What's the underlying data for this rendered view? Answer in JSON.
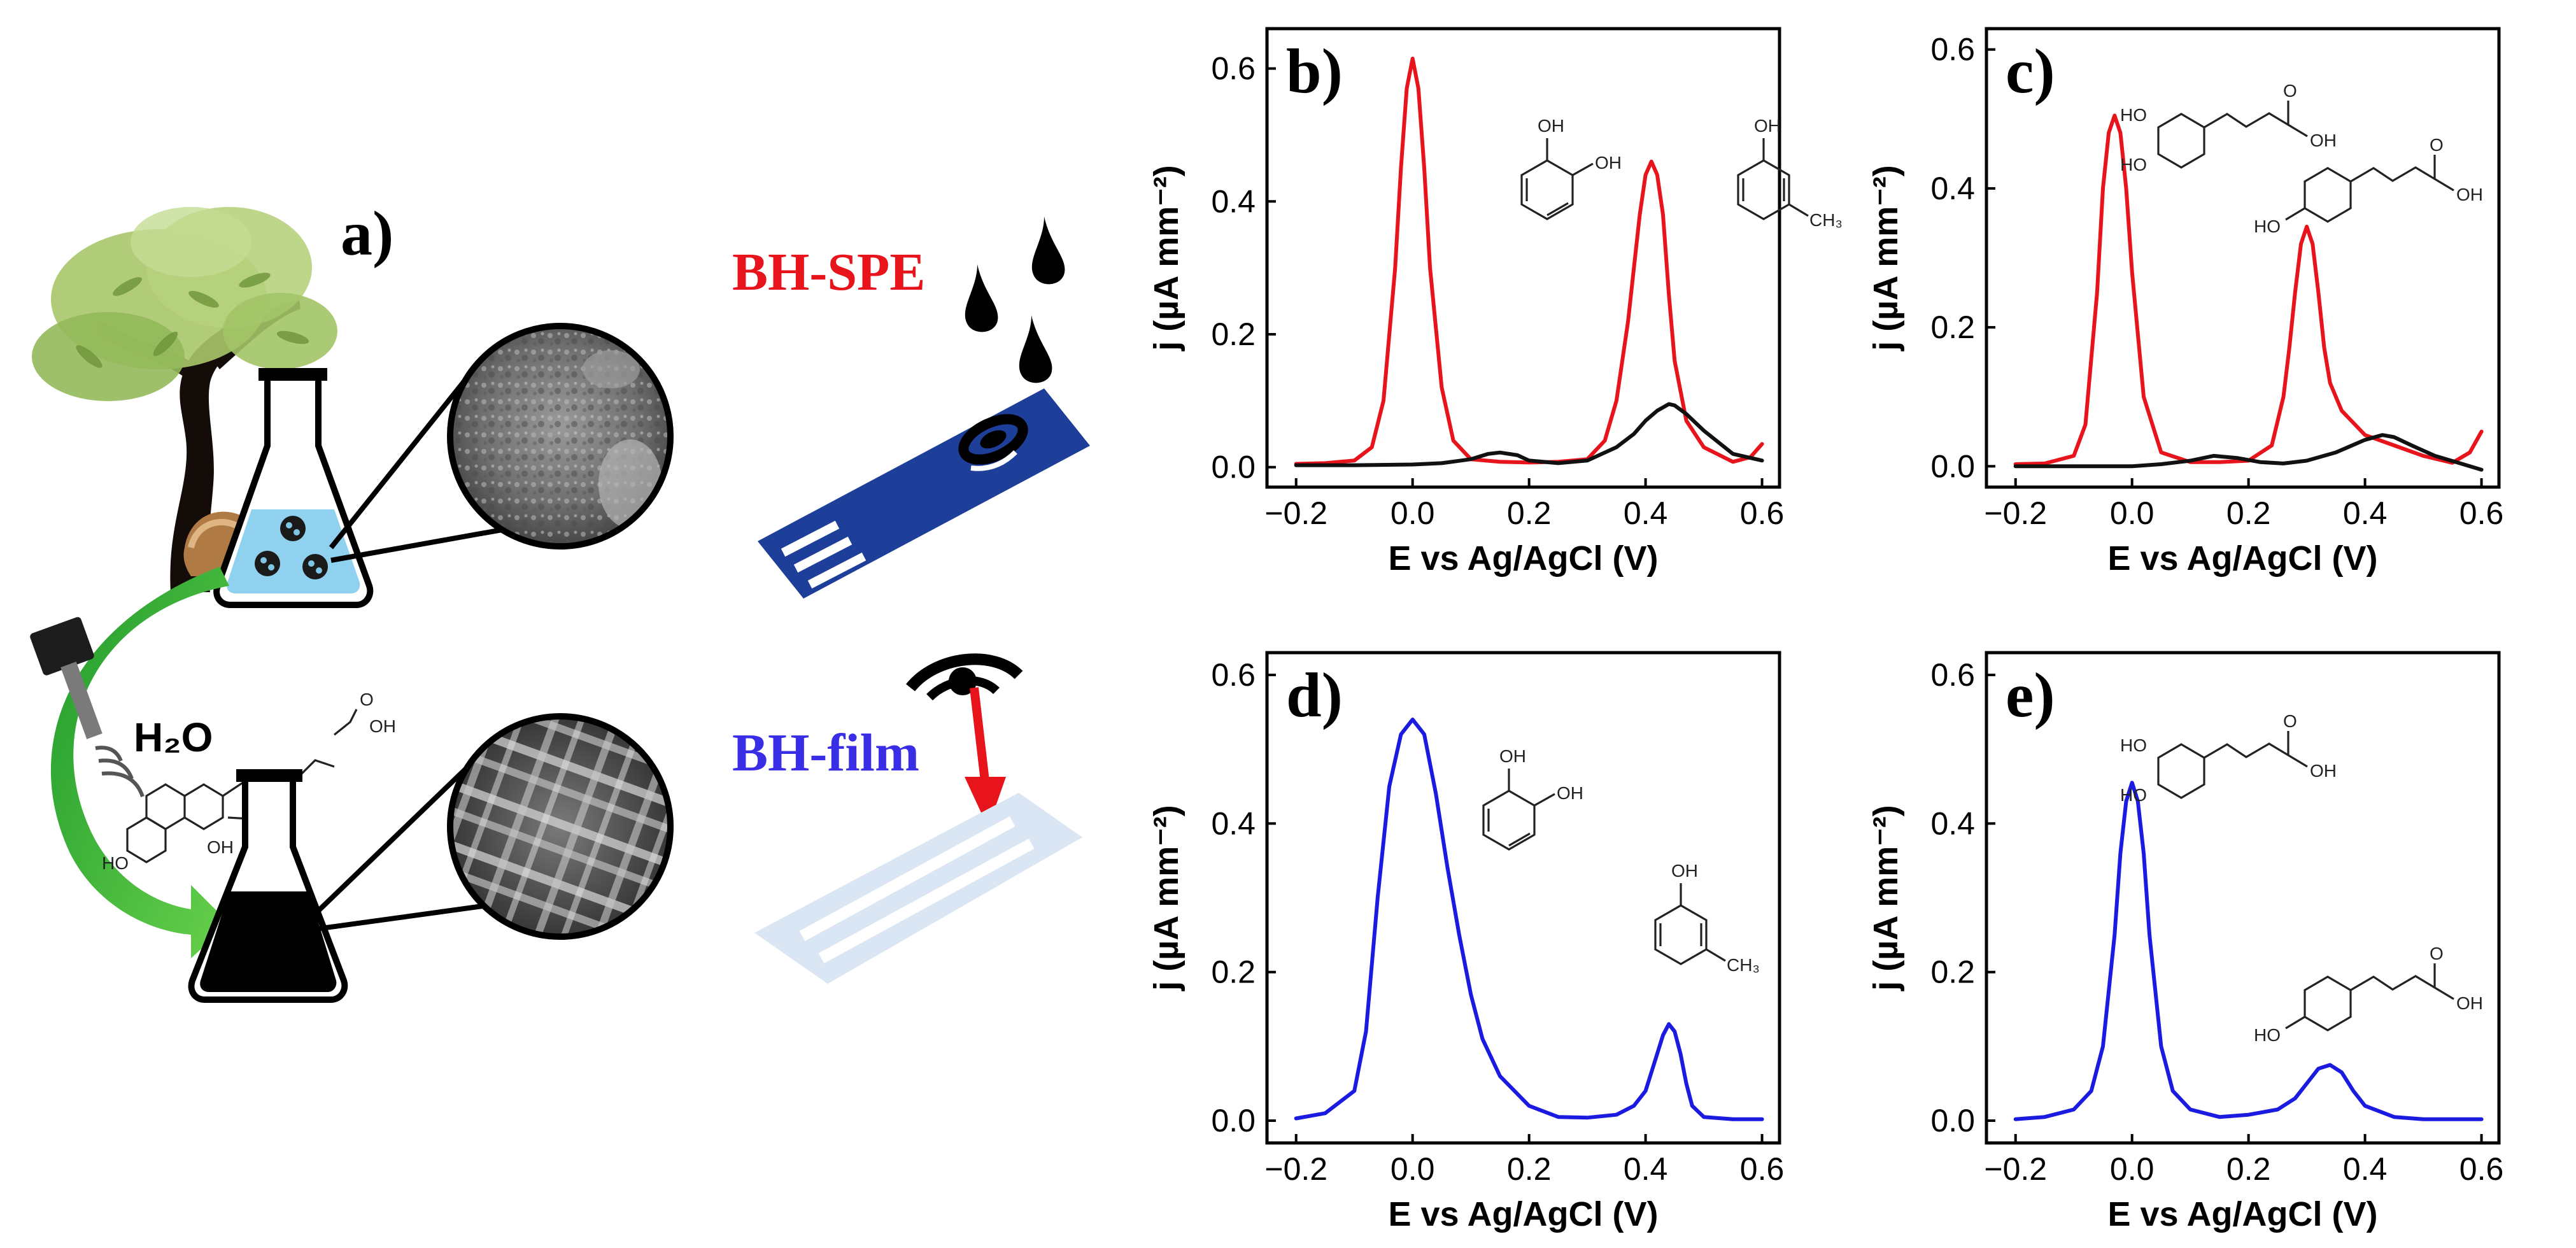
{
  "scheme": {
    "panel_label": "a)",
    "water_label": "H₂O",
    "spe_label": "BH-SPE",
    "film_label": "BH-film",
    "spe_color": "#e8141c",
    "film_color": "#3a2de6"
  },
  "molecules": {
    "oh": "OH",
    "ho": "HO",
    "ch3": "CH₃",
    "o": "O"
  },
  "chart_data": [
    {
      "panel": "b)",
      "type": "line",
      "xlabel": "E vs Ag/AgCl (V)",
      "ylabel": "j (µA mm⁻²)",
      "xlim": [
        -0.25,
        0.63
      ],
      "ylim": [
        -0.03,
        0.66
      ],
      "xticks": [
        "-0.2",
        "0.0",
        "0.2",
        "0.4",
        "0.6"
      ],
      "xtick_values": [
        -0.2,
        0.0,
        0.2,
        0.4,
        0.6
      ],
      "yticks": [
        "0.0",
        "0.2",
        "0.4",
        "0.6"
      ],
      "ytick_values": [
        0.0,
        0.2,
        0.4,
        0.6
      ],
      "series": [
        {
          "name": "BH-SPE",
          "color": "#e8141c",
          "x": [
            -0.2,
            -0.15,
            -0.1,
            -0.07,
            -0.05,
            -0.03,
            -0.02,
            -0.01,
            0.0,
            0.01,
            0.02,
            0.03,
            0.05,
            0.07,
            0.1,
            0.15,
            0.2,
            0.25,
            0.3,
            0.33,
            0.35,
            0.37,
            0.38,
            0.39,
            0.4,
            0.41,
            0.42,
            0.43,
            0.44,
            0.45,
            0.47,
            0.5,
            0.55,
            0.58,
            0.6
          ],
          "y": [
            0.005,
            0.006,
            0.01,
            0.03,
            0.1,
            0.3,
            0.45,
            0.57,
            0.615,
            0.57,
            0.45,
            0.3,
            0.12,
            0.04,
            0.012,
            0.008,
            0.007,
            0.008,
            0.012,
            0.04,
            0.1,
            0.22,
            0.3,
            0.38,
            0.44,
            0.46,
            0.44,
            0.38,
            0.26,
            0.16,
            0.07,
            0.03,
            0.008,
            0.015,
            0.035
          ]
        },
        {
          "name": "BH-film",
          "color": "#111111",
          "x": [
            -0.2,
            -0.1,
            0.0,
            0.05,
            0.1,
            0.13,
            0.15,
            0.18,
            0.2,
            0.25,
            0.3,
            0.35,
            0.38,
            0.4,
            0.42,
            0.44,
            0.45,
            0.47,
            0.5,
            0.55,
            0.6
          ],
          "y": [
            0.003,
            0.003,
            0.004,
            0.006,
            0.012,
            0.02,
            0.022,
            0.018,
            0.01,
            0.006,
            0.01,
            0.03,
            0.05,
            0.07,
            0.085,
            0.095,
            0.093,
            0.08,
            0.055,
            0.02,
            0.01
          ]
        }
      ]
    },
    {
      "panel": "c)",
      "type": "line",
      "xlabel": "E vs Ag/AgCl (V)",
      "ylabel": "j (µA mm⁻²)",
      "xlim": [
        -0.25,
        0.63
      ],
      "ylim": [
        -0.03,
        0.63
      ],
      "xticks": [
        "-0.2",
        "0.0",
        "0.2",
        "0.4",
        "0.6"
      ],
      "xtick_values": [
        -0.2,
        0.0,
        0.2,
        0.4,
        0.6
      ],
      "yticks": [
        "0.0",
        "0.2",
        "0.4",
        "0.6"
      ],
      "ytick_values": [
        0.0,
        0.2,
        0.4,
        0.6
      ],
      "series": [
        {
          "name": "BH-SPE",
          "color": "#e8141c",
          "x": [
            -0.2,
            -0.15,
            -0.1,
            -0.08,
            -0.06,
            -0.05,
            -0.04,
            -0.03,
            -0.02,
            -0.01,
            0.0,
            0.02,
            0.05,
            0.1,
            0.15,
            0.2,
            0.24,
            0.26,
            0.27,
            0.28,
            0.29,
            0.3,
            0.31,
            0.32,
            0.33,
            0.34,
            0.36,
            0.4,
            0.45,
            0.5,
            0.55,
            0.58,
            0.6
          ],
          "y": [
            0.003,
            0.004,
            0.015,
            0.06,
            0.25,
            0.4,
            0.48,
            0.505,
            0.48,
            0.4,
            0.28,
            0.1,
            0.02,
            0.006,
            0.006,
            0.008,
            0.03,
            0.1,
            0.17,
            0.25,
            0.32,
            0.345,
            0.32,
            0.25,
            0.17,
            0.12,
            0.08,
            0.045,
            0.03,
            0.015,
            0.005,
            0.02,
            0.05
          ]
        },
        {
          "name": "BH-film",
          "color": "#111111",
          "x": [
            -0.2,
            -0.1,
            0.0,
            0.05,
            0.1,
            0.14,
            0.18,
            0.22,
            0.26,
            0.3,
            0.35,
            0.4,
            0.43,
            0.45,
            0.48,
            0.52,
            0.56,
            0.6
          ],
          "y": [
            0.0,
            0.0,
            0.0,
            0.003,
            0.008,
            0.015,
            0.012,
            0.006,
            0.004,
            0.008,
            0.02,
            0.038,
            0.045,
            0.042,
            0.03,
            0.015,
            0.005,
            -0.005
          ]
        }
      ]
    },
    {
      "panel": "d)",
      "type": "line",
      "xlabel": "E vs Ag/AgCl (V)",
      "ylabel": "j (µA mm⁻²)",
      "xlim": [
        -0.25,
        0.63
      ],
      "ylim": [
        -0.03,
        0.63
      ],
      "xticks": [
        "-0.2",
        "0.0",
        "0.2",
        "0.4",
        "0.6"
      ],
      "xtick_values": [
        -0.2,
        0.0,
        0.2,
        0.4,
        0.6
      ],
      "yticks": [
        "0.0",
        "0.2",
        "0.4",
        "0.6"
      ],
      "ytick_values": [
        0.0,
        0.2,
        0.4,
        0.6
      ],
      "series": [
        {
          "name": "BH-film",
          "color": "#1a1ae0",
          "x": [
            -0.2,
            -0.15,
            -0.1,
            -0.08,
            -0.06,
            -0.04,
            -0.02,
            0.0,
            0.02,
            0.04,
            0.06,
            0.08,
            0.1,
            0.12,
            0.15,
            0.2,
            0.25,
            0.3,
            0.35,
            0.38,
            0.4,
            0.42,
            0.43,
            0.44,
            0.45,
            0.46,
            0.47,
            0.48,
            0.5,
            0.55,
            0.6
          ],
          "y": [
            0.003,
            0.01,
            0.04,
            0.12,
            0.3,
            0.45,
            0.52,
            0.54,
            0.52,
            0.44,
            0.34,
            0.25,
            0.17,
            0.11,
            0.06,
            0.02,
            0.005,
            0.004,
            0.008,
            0.02,
            0.04,
            0.09,
            0.115,
            0.13,
            0.12,
            0.09,
            0.05,
            0.02,
            0.005,
            0.002,
            0.002
          ]
        }
      ]
    },
    {
      "panel": "e)",
      "type": "line",
      "xlabel": "E vs Ag/AgCl (V)",
      "ylabel": "j (µA mm⁻²)",
      "xlim": [
        -0.25,
        0.63
      ],
      "ylim": [
        -0.03,
        0.63
      ],
      "xticks": [
        "-0.2",
        "0.0",
        "0.2",
        "0.4",
        "0.6"
      ],
      "xtick_values": [
        -0.2,
        0.0,
        0.2,
        0.4,
        0.6
      ],
      "yticks": [
        "0.0",
        "0.2",
        "0.4",
        "0.6"
      ],
      "ytick_values": [
        0.0,
        0.2,
        0.4,
        0.6
      ],
      "series": [
        {
          "name": "BH-film",
          "color": "#1a1ae0",
          "x": [
            -0.2,
            -0.15,
            -0.1,
            -0.07,
            -0.05,
            -0.03,
            -0.02,
            -0.01,
            0.0,
            0.01,
            0.02,
            0.03,
            0.05,
            0.07,
            0.1,
            0.15,
            0.2,
            0.25,
            0.28,
            0.3,
            0.32,
            0.34,
            0.36,
            0.38,
            0.4,
            0.45,
            0.5,
            0.6
          ],
          "y": [
            0.002,
            0.005,
            0.015,
            0.04,
            0.1,
            0.25,
            0.36,
            0.43,
            0.455,
            0.43,
            0.36,
            0.25,
            0.1,
            0.04,
            0.015,
            0.005,
            0.008,
            0.015,
            0.03,
            0.05,
            0.07,
            0.075,
            0.065,
            0.04,
            0.02,
            0.005,
            0.002,
            0.002
          ]
        }
      ]
    }
  ]
}
